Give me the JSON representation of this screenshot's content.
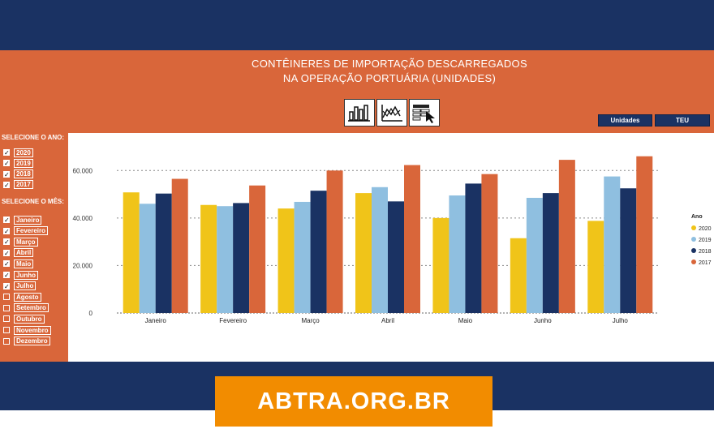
{
  "title": {
    "line1": "CONTÊINERES DE IMPORTAÇÃO DESCARREGADOS",
    "line2": "NA OPERAÇÃO PORTUÁRIA (UNIDADES)"
  },
  "toolbar": {
    "icons": [
      "bar-chart-icon",
      "line-chart-icon",
      "table-select-icon"
    ]
  },
  "unit_buttons": [
    "Unidades",
    "TEU"
  ],
  "year_filter": {
    "label": "SELECIONE O ANO:",
    "items": [
      {
        "label": "2020",
        "checked": true
      },
      {
        "label": "2019",
        "checked": true
      },
      {
        "label": "2018",
        "checked": true
      },
      {
        "label": "2017",
        "checked": true
      }
    ]
  },
  "month_filter": {
    "label": "SELECIONE O MÊS:",
    "items": [
      {
        "label": "Janeiro",
        "checked": true
      },
      {
        "label": "Fevereiro",
        "checked": true
      },
      {
        "label": "Março",
        "checked": true
      },
      {
        "label": "Abril",
        "checked": true
      },
      {
        "label": "Maio",
        "checked": true
      },
      {
        "label": "Junho",
        "checked": true
      },
      {
        "label": "Julho",
        "checked": true
      },
      {
        "label": "Agosto",
        "checked": false
      },
      {
        "label": "Setembro",
        "checked": false
      },
      {
        "label": "Outubro",
        "checked": false
      },
      {
        "label": "Novembro",
        "checked": false
      },
      {
        "label": "Dezembro",
        "checked": false
      }
    ]
  },
  "chart_data": {
    "type": "bar",
    "categories": [
      "Janeiro",
      "Fevereiro",
      "Março",
      "Abril",
      "Maio",
      "Junho",
      "Julho"
    ],
    "series": [
      {
        "name": "2020",
        "color": "#f0c419",
        "values": [
          50800,
          45500,
          44000,
          50500,
          40000,
          31500,
          38800
        ]
      },
      {
        "name": "2019",
        "color": "#8fbfe0",
        "values": [
          46000,
          45000,
          46800,
          53000,
          49500,
          48500,
          57500
        ]
      },
      {
        "name": "2018",
        "color": "#1a3263",
        "values": [
          50300,
          46300,
          51500,
          47000,
          54500,
          50500,
          52500
        ]
      },
      {
        "name": "2017",
        "color": "#d9663a",
        "values": [
          56500,
          53700,
          60000,
          62300,
          58500,
          64500,
          66000
        ]
      }
    ],
    "ylim": [
      0,
      70000
    ],
    "yticks": [
      "0",
      "20.000",
      "40.000",
      "60.000"
    ],
    "ytick_values": [
      0,
      20000,
      40000,
      60000
    ],
    "legend_title": "Ano",
    "legend_position": "right",
    "grid": true
  },
  "footer": {
    "logo_text": "ABTRA.ORG.BR"
  }
}
